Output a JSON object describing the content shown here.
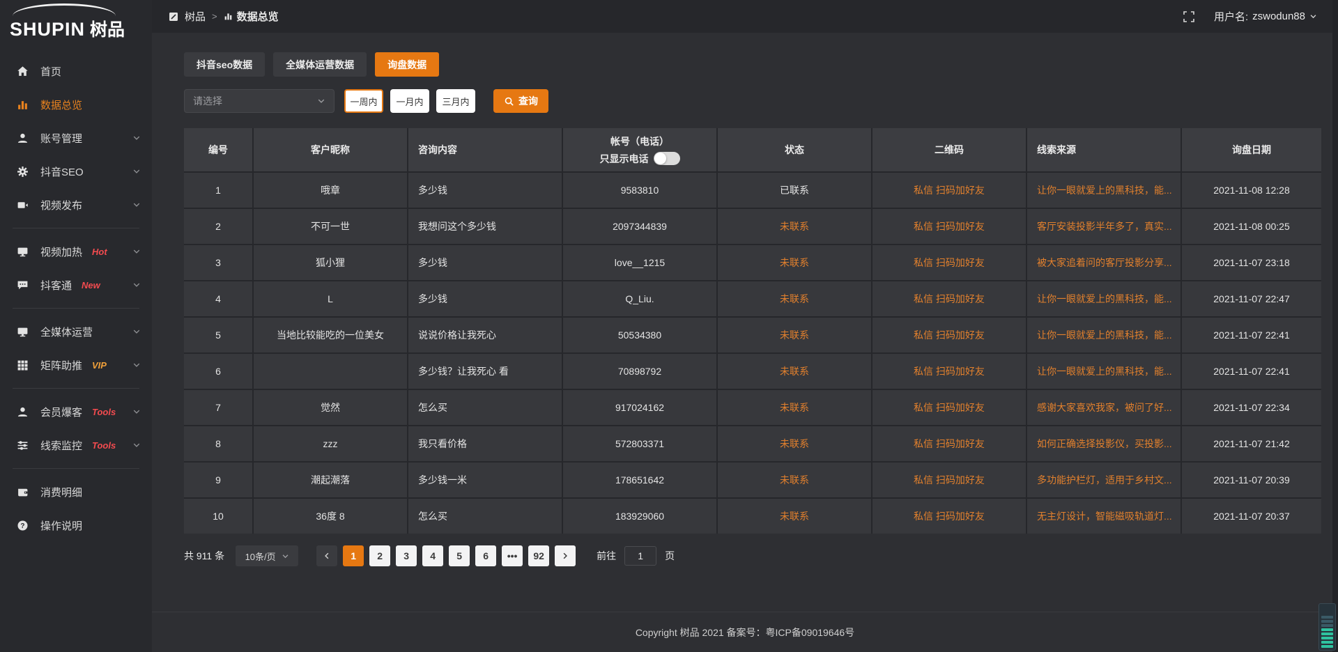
{
  "app": {
    "logo_en": "SHUPIN",
    "logo_cjk": "树品"
  },
  "header": {
    "breadcrumb_root": "树品",
    "breadcrumb_separator": ">",
    "breadcrumb_current": "数据总览",
    "username_label": "用户名:",
    "username": "zswodun88"
  },
  "sidebar": {
    "items": [
      {
        "key": "home",
        "label": "首页",
        "icon": "home-icon"
      },
      {
        "key": "data-overview",
        "label": "数据总览",
        "icon": "chart-bar-icon",
        "active": true
      },
      {
        "key": "account-management",
        "label": "账号管理",
        "icon": "user-icon",
        "chevron": true
      },
      {
        "key": "douyin-seo",
        "label": "抖音SEO",
        "icon": "gear-icon",
        "chevron": true
      },
      {
        "key": "video-publish",
        "label": "视频发布",
        "icon": "video-icon",
        "chevron": true
      },
      {
        "divider": true
      },
      {
        "key": "video-heating",
        "label": "视频加热",
        "icon": "monitor-icon",
        "badge": "Hot",
        "badge_color": "red",
        "chevron": true
      },
      {
        "key": "douketong",
        "label": "抖客通",
        "icon": "chat-icon",
        "badge": "New",
        "badge_color": "red",
        "chevron": true
      },
      {
        "divider": true
      },
      {
        "key": "omni-media-operation",
        "label": "全媒体运营",
        "icon": "monitor-icon",
        "chevron": true
      },
      {
        "key": "matrix-boost",
        "label": "矩阵助推",
        "icon": "grid-icon",
        "badge": "VIP",
        "badge_color": "orange",
        "chevron": true
      },
      {
        "divider": true
      },
      {
        "key": "member-baoke",
        "label": "会员爆客",
        "icon": "user-icon",
        "badge": "Tools",
        "badge_color": "red",
        "chevron": true
      },
      {
        "key": "clue-monitor",
        "label": "线索监控",
        "icon": "sliders-icon",
        "badge": "Tools",
        "badge_color": "red",
        "chevron": true
      },
      {
        "divider": true
      },
      {
        "key": "consumption-detail",
        "label": "消费明细",
        "icon": "wallet-icon"
      },
      {
        "key": "operation-guide",
        "label": "操作说明",
        "icon": "question-icon"
      }
    ]
  },
  "tabs": [
    {
      "key": "douyin-seo-data",
      "label": "抖音seo数据",
      "active": false
    },
    {
      "key": "omni-media-data",
      "label": "全媒体运营数据",
      "active": false
    },
    {
      "key": "inquiry-data",
      "label": "询盘数据",
      "active": true
    }
  ],
  "filters": {
    "select_placeholder": "请选择",
    "date_buttons": [
      {
        "label": "一周内",
        "active": true
      },
      {
        "label": "一月内",
        "active": false
      },
      {
        "label": "三月内",
        "active": false
      }
    ],
    "query_label": "查询"
  },
  "table": {
    "columns": [
      "编号",
      "客户昵称",
      "咨询内容",
      "帐号（电话）",
      "状态",
      "二维码",
      "线索来源",
      "询盘日期"
    ],
    "phone_toggle_label": "只显示电话",
    "phone_toggle_on": false,
    "rows": [
      {
        "id": "1",
        "nickname": "哦章",
        "content": "多少钱",
        "phone": "9583810",
        "status": "已联系",
        "contacted": true,
        "qr": "私信 扫码加好友",
        "source": "让你一眼就爱上的黑科技，能...",
        "date": "2021-11-08 12:28"
      },
      {
        "id": "2",
        "nickname": "不可一世",
        "content": "我想问这个多少钱",
        "phone": "2097344839",
        "status": "未联系",
        "contacted": false,
        "qr": "私信 扫码加好友",
        "source": "客厅安装投影半年多了，真实...",
        "date": "2021-11-08 00:25"
      },
      {
        "id": "3",
        "nickname": "狐小狸",
        "content": "多少钱",
        "phone": "love__1215",
        "status": "未联系",
        "contacted": false,
        "qr": "私信 扫码加好友",
        "source": "被大家追着问的客厅投影分享...",
        "date": "2021-11-07 23:18"
      },
      {
        "id": "4",
        "nickname": "L",
        "content": "多少钱",
        "phone": "Q_Liu.",
        "status": "未联系",
        "contacted": false,
        "qr": "私信 扫码加好友",
        "source": "让你一眼就爱上的黑科技，能...",
        "date": "2021-11-07 22:47"
      },
      {
        "id": "5",
        "nickname": "当地比较能吃的一位美女",
        "content": "说说价格让我死心",
        "phone": "50534380",
        "status": "未联系",
        "contacted": false,
        "qr": "私信 扫码加好友",
        "source": "让你一眼就爱上的黑科技，能...",
        "date": "2021-11-07 22:41"
      },
      {
        "id": "6",
        "nickname": "",
        "content": "多少钱？让我死心 看",
        "phone": "70898792",
        "status": "未联系",
        "contacted": false,
        "qr": "私信 扫码加好友",
        "source": "让你一眼就爱上的黑科技，能...",
        "date": "2021-11-07 22:41"
      },
      {
        "id": "7",
        "nickname": "觉然",
        "content": "怎么买",
        "phone": "917024162",
        "status": "未联系",
        "contacted": false,
        "qr": "私信 扫码加好友",
        "source": "感谢大家喜欢我家，被问了好...",
        "date": "2021-11-07 22:34"
      },
      {
        "id": "8",
        "nickname": "zzz",
        "content": "我只看价格",
        "phone": "572803371",
        "status": "未联系",
        "contacted": false,
        "qr": "私信 扫码加好友",
        "source": "如何正确选择投影仪，买投影...",
        "date": "2021-11-07 21:42"
      },
      {
        "id": "9",
        "nickname": "潮起潮落",
        "content": "多少钱一米",
        "phone": "178651642",
        "status": "未联系",
        "contacted": false,
        "qr": "私信 扫码加好友",
        "source": "多功能护栏灯，适用于乡村文...",
        "date": "2021-11-07 20:39"
      },
      {
        "id": "10",
        "nickname": "36度 8",
        "content": "怎么买",
        "phone": "183929060",
        "status": "未联系",
        "contacted": false,
        "qr": "私信 扫码加好友",
        "source": "无主灯设计，智能磁吸轨道灯...",
        "date": "2021-11-07 20:37"
      }
    ]
  },
  "pagination": {
    "total_label": "共 911 条",
    "page_size": "10条/页",
    "pages": [
      "1",
      "2",
      "3",
      "4",
      "5",
      "6",
      "•••",
      "92"
    ],
    "active_page": "1",
    "goto_label": "前往",
    "goto_value": "1",
    "goto_suffix": "页"
  },
  "footer": {
    "copyright": "Copyright 树品 2021 备案号：粤ICP备09019646号"
  },
  "colors": {
    "accent": "#e67812",
    "link_orange": "#e2802d",
    "badge_red": "#f34b4f",
    "badge_vip": "#f0a03a"
  }
}
